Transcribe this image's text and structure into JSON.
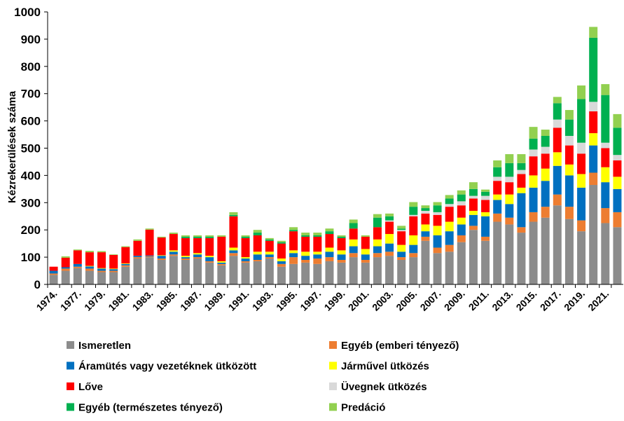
{
  "chart_data": {
    "type": "stacked_bar",
    "y_label": "Kézrekerülések száma",
    "categories": [
      "1974.",
      null,
      "1977.",
      null,
      "1979.",
      null,
      "1981.",
      null,
      "1983.",
      null,
      "1985.",
      null,
      "1987.",
      null,
      "1989.",
      null,
      "1991.",
      null,
      "1993.",
      null,
      "1995.",
      null,
      "1997.",
      null,
      "1999.",
      null,
      "2001.",
      null,
      "2003.",
      null,
      "2005.",
      null,
      "2007.",
      null,
      "2009.",
      null,
      "2011.",
      null,
      "2013.",
      null,
      "2015.",
      null,
      "2017.",
      null,
      "2019.",
      null,
      "2021.",
      null
    ],
    "series": [
      {
        "name": "Ismeretlen",
        "color": "#8c8c8c",
        "values": [
          35,
          50,
          60,
          50,
          45,
          45,
          65,
          95,
          100,
          90,
          105,
          90,
          95,
          80,
          70,
          105,
          80,
          85,
          95,
          65,
          75,
          80,
          75,
          85,
          80,
          100,
          80,
          100,
          105,
          90,
          100,
          160,
          115,
          120,
          155,
          200,
          160,
          230,
          220,
          190,
          230,
          245,
          290,
          240,
          195,
          365,
          225,
          210
        ]
      },
      {
        "name": "Egyéb (emberi tényező)",
        "color": "#ed7d31",
        "values": [
          5,
          8,
          5,
          8,
          5,
          5,
          5,
          5,
          3,
          5,
          5,
          5,
          5,
          5,
          5,
          10,
          5,
          5,
          5,
          10,
          25,
          10,
          20,
          15,
          10,
          15,
          10,
          15,
          15,
          10,
          15,
          15,
          20,
          25,
          25,
          15,
          15,
          30,
          25,
          20,
          35,
          40,
          40,
          45,
          40,
          45,
          55,
          55
        ]
      },
      {
        "name": "Áramütés vagy vezetéknek ütközött",
        "color": "#0070c0",
        "values": [
          10,
          5,
          10,
          8,
          8,
          6,
          5,
          5,
          3,
          10,
          10,
          5,
          10,
          15,
          5,
          10,
          10,
          20,
          10,
          10,
          15,
          15,
          15,
          20,
          20,
          25,
          20,
          25,
          30,
          20,
          30,
          20,
          45,
          50,
          40,
          40,
          75,
          50,
          50,
          125,
          90,
          95,
          105,
          115,
          120,
          100,
          95,
          85
        ]
      },
      {
        "name": "Járművel ütközés",
        "color": "#ffff00",
        "values": [
          0,
          0,
          0,
          2,
          2,
          2,
          2,
          0,
          0,
          2,
          5,
          5,
          5,
          5,
          5,
          10,
          5,
          10,
          10,
          10,
          10,
          15,
          10,
          15,
          15,
          25,
          20,
          25,
          35,
          25,
          35,
          25,
          35,
          35,
          25,
          15,
          15,
          20,
          35,
          20,
          45,
          45,
          50,
          40,
          50,
          45,
          55,
          45
        ]
      },
      {
        "name": "Lőve",
        "color": "#ff0000",
        "values": [
          15,
          35,
          50,
          50,
          58,
          50,
          60,
          55,
          95,
          65,
          60,
          65,
          55,
          65,
          90,
          115,
          70,
          60,
          40,
          55,
          70,
          55,
          55,
          50,
          45,
          40,
          45,
          45,
          45,
          50,
          70,
          40,
          40,
          55,
          45,
          45,
          45,
          50,
          45,
          50,
          70,
          55,
          90,
          70,
          75,
          80,
          70,
          60
        ]
      },
      {
        "name": "Üvegnek ütközés",
        "color": "#d9d9d9",
        "values": [
          0,
          0,
          0,
          0,
          0,
          0,
          0,
          0,
          0,
          0,
          0,
          0,
          0,
          0,
          0,
          0,
          0,
          0,
          0,
          0,
          0,
          0,
          0,
          0,
          0,
          0,
          0,
          0,
          5,
          5,
          5,
          10,
          10,
          10,
          15,
          10,
          15,
          15,
          20,
          15,
          25,
          25,
          30,
          35,
          40,
          35,
          20,
          20
        ]
      },
      {
        "name": "Egyéb (természetes tényező)",
        "color": "#00b050",
        "values": [
          0,
          0,
          0,
          0,
          0,
          0,
          0,
          0,
          0,
          0,
          0,
          5,
          5,
          5,
          0,
          5,
          5,
          10,
          5,
          5,
          5,
          5,
          5,
          10,
          5,
          20,
          0,
          35,
          15,
          5,
          30,
          10,
          25,
          20,
          25,
          25,
          15,
          35,
          50,
          25,
          40,
          40,
          60,
          60,
          160,
          235,
          175,
          100
        ]
      },
      {
        "name": "Predáció",
        "color": "#92d050",
        "values": [
          0,
          5,
          3,
          5,
          4,
          2,
          3,
          5,
          4,
          3,
          5,
          5,
          5,
          5,
          5,
          10,
          5,
          10,
          5,
          5,
          10,
          10,
          10,
          10,
          5,
          13,
          5,
          13,
          10,
          10,
          17,
          10,
          12,
          13,
          15,
          25,
          8,
          25,
          33,
          33,
          43,
          23,
          23,
          35,
          50,
          40,
          40,
          50
        ]
      }
    ],
    "ylim": [
      0,
      1000
    ],
    "yticks": [
      0,
      100,
      200,
      300,
      400,
      500,
      600,
      700,
      800,
      900,
      1000
    ]
  }
}
